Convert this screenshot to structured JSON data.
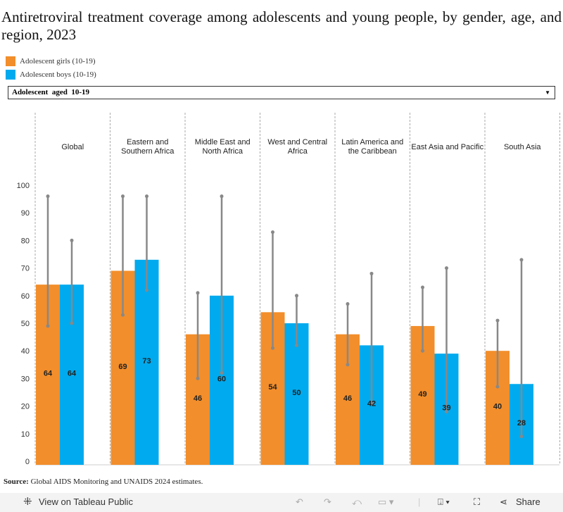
{
  "title": "Antiretroviral treatment coverage among adolescents and young people, by gender, age, and region, 2023",
  "legend": [
    {
      "label": "Adolescent girls (10-19)",
      "color": "#F28E2B"
    },
    {
      "label": "Adolescent boys (10-19)",
      "color": "#00AAEE"
    }
  ],
  "filter": {
    "selected": "Adolescent  aged  10-19"
  },
  "source_label": "Source:",
  "source_text": " Global AIDS Monitoring and UNAIDS 2024 estimates.",
  "toolbar": {
    "view_label": "View on Tableau Public",
    "share_label": "Share",
    "icons": [
      "tableau-icon",
      "undo-icon",
      "redo-icon",
      "revert-icon",
      "refresh-icon",
      "download-icon",
      "fullscreen-icon",
      "share-icon"
    ]
  },
  "chart_data": {
    "type": "bar",
    "categories": [
      "Global",
      "Eastern and\nSouthern Africa",
      "Middle East and\nNorth Africa",
      "West and Central\nAfrica",
      "Latin America and\nthe Caribbean",
      "East Asia and Pacific",
      "South Asia"
    ],
    "ylim": [
      0,
      100
    ],
    "yticks": [
      0,
      10,
      20,
      30,
      40,
      50,
      60,
      70,
      80,
      90,
      100
    ],
    "grid": false,
    "legend_position": "top-left",
    "series": [
      {
        "name": "Adolescent girls (10-19)",
        "color": "#F28E2B",
        "values": [
          64,
          69,
          46,
          54,
          46,
          49,
          40
        ],
        "lower": [
          49,
          53,
          30,
          41,
          35,
          40,
          27
        ],
        "upper": [
          96,
          96,
          61,
          83,
          57,
          63,
          51
        ]
      },
      {
        "name": "Adolescent boys (10-19)",
        "color": "#00AAEE",
        "values": [
          64,
          73,
          60,
          50,
          42,
          39,
          28
        ],
        "lower": [
          50,
          62,
          32,
          42,
          21,
          18,
          9
        ],
        "upper": [
          80,
          96,
          96,
          60,
          68,
          70,
          73
        ]
      }
    ]
  }
}
